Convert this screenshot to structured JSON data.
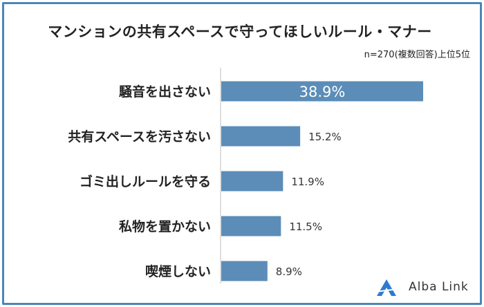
{
  "chart_data": {
    "type": "bar",
    "orientation": "horizontal",
    "title": "マンションの共有スペースで守ってほしいルール・マナー",
    "subtitle": "n=270(複数回答)上位5位",
    "categories": [
      "騒音を出さない",
      "共有スペースを汚さない",
      "ゴミ出しルールを守る",
      "私物を置かない",
      "喫煙しない"
    ],
    "values": [
      38.9,
      15.2,
      11.9,
      11.5,
      8.9
    ],
    "value_labels": [
      "38.9%",
      "15.2%",
      "11.9%",
      "11.5%",
      "8.9%"
    ],
    "xlim": [
      0,
      40
    ],
    "xlabel": "",
    "ylabel": "",
    "bar_color": "#5b8db8",
    "grid": false
  },
  "brand": {
    "name": "Alba Link",
    "accent": "#2e7ad1"
  }
}
